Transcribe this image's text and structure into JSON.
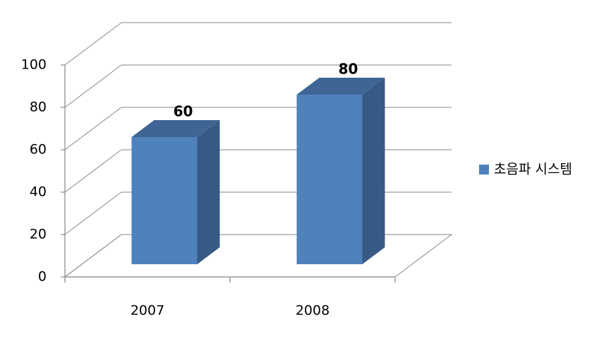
{
  "chart_data": {
    "type": "bar",
    "categories": [
      "2007",
      "2008"
    ],
    "series": [
      {
        "name": "초음파 시스템",
        "color": "#4f81bd",
        "values": [
          60,
          80
        ]
      }
    ],
    "ylim": [
      0,
      100
    ],
    "yticks": [
      0,
      20,
      40,
      60,
      80,
      100
    ],
    "grid": true,
    "legend": "right"
  }
}
